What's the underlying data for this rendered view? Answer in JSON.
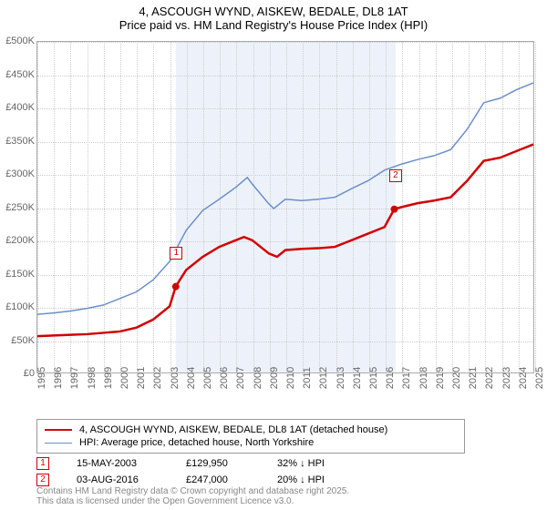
{
  "title_line1": "4, ASCOUGH WYND, AISKEW, BEDALE, DL8 1AT",
  "title_line2": "Price paid vs. HM Land Registry's House Price Index (HPI)",
  "colors": {
    "series_property": "#d10000",
    "series_hpi": "#6b8fc9",
    "grid": "#cccccc",
    "shade": "#edf2fa",
    "text": "#000000",
    "axis_text": "#666666",
    "marker_border": "#d10000"
  },
  "y_axis": {
    "min": 0,
    "max": 500000,
    "step": 50000,
    "ticks": [
      "£0",
      "£50K",
      "£100K",
      "£150K",
      "£200K",
      "£250K",
      "£300K",
      "£350K",
      "£400K",
      "£450K",
      "£500K"
    ]
  },
  "x_axis": {
    "min": 1995,
    "max": 2025,
    "step": 1,
    "ticks": [
      "1995",
      "1996",
      "1997",
      "1998",
      "1999",
      "2000",
      "2001",
      "2002",
      "2003",
      "2004",
      "2005",
      "2006",
      "2007",
      "2008",
      "2009",
      "2010",
      "2011",
      "2012",
      "2013",
      "2014",
      "2015",
      "2016",
      "2017",
      "2018",
      "2019",
      "2020",
      "2021",
      "2022",
      "2023",
      "2024",
      "2025"
    ]
  },
  "shade_range": {
    "start": 2003.37,
    "end": 2016.59
  },
  "series": {
    "property": {
      "label": "4, ASCOUGH WYND, AISKEW, BEDALE, DL8 1AT (detached house)",
      "line_width": 2.5,
      "points": [
        [
          1995,
          55000
        ],
        [
          1996,
          56000
        ],
        [
          1997,
          57000
        ],
        [
          1998,
          58000
        ],
        [
          1999,
          60000
        ],
        [
          2000,
          62000
        ],
        [
          2001,
          68000
        ],
        [
          2002,
          80000
        ],
        [
          2003,
          100000
        ],
        [
          2003.37,
          129950
        ],
        [
          2004,
          155000
        ],
        [
          2005,
          175000
        ],
        [
          2006,
          190000
        ],
        [
          2007,
          200000
        ],
        [
          2007.5,
          205000
        ],
        [
          2008,
          200000
        ],
        [
          2009,
          180000
        ],
        [
          2009.5,
          175000
        ],
        [
          2010,
          185000
        ],
        [
          2011,
          187000
        ],
        [
          2012,
          188000
        ],
        [
          2013,
          190000
        ],
        [
          2014,
          200000
        ],
        [
          2015,
          210000
        ],
        [
          2016,
          220000
        ],
        [
          2016.59,
          247000
        ],
        [
          2017,
          250000
        ],
        [
          2018,
          256000
        ],
        [
          2019,
          260000
        ],
        [
          2020,
          265000
        ],
        [
          2021,
          290000
        ],
        [
          2022,
          320000
        ],
        [
          2023,
          325000
        ],
        [
          2024,
          335000
        ],
        [
          2025,
          345000
        ]
      ]
    },
    "hpi": {
      "label": "HPI: Average price, detached house, North Yorkshire",
      "line_width": 1.5,
      "points": [
        [
          1995,
          88000
        ],
        [
          1996,
          90000
        ],
        [
          1997,
          93000
        ],
        [
          1998,
          97000
        ],
        [
          1999,
          102000
        ],
        [
          2000,
          112000
        ],
        [
          2001,
          122000
        ],
        [
          2002,
          140000
        ],
        [
          2003,
          168000
        ],
        [
          2004,
          215000
        ],
        [
          2005,
          245000
        ],
        [
          2006,
          262000
        ],
        [
          2007,
          280000
        ],
        [
          2007.7,
          295000
        ],
        [
          2008,
          285000
        ],
        [
          2009,
          255000
        ],
        [
          2009.3,
          248000
        ],
        [
          2010,
          262000
        ],
        [
          2011,
          260000
        ],
        [
          2012,
          262000
        ],
        [
          2013,
          265000
        ],
        [
          2014,
          278000
        ],
        [
          2015,
          290000
        ],
        [
          2016,
          306000
        ],
        [
          2017,
          315000
        ],
        [
          2018,
          322000
        ],
        [
          2019,
          328000
        ],
        [
          2020,
          337000
        ],
        [
          2021,
          368000
        ],
        [
          2022,
          408000
        ],
        [
          2023,
          415000
        ],
        [
          2024,
          428000
        ],
        [
          2025,
          438000
        ]
      ]
    }
  },
  "markers": [
    {
      "n": "1",
      "x": 2003.37,
      "y": 129950,
      "date": "15-MAY-2003",
      "price": "£129,950",
      "delta": "32% ↓ HPI"
    },
    {
      "n": "2",
      "x": 2016.59,
      "y": 247000,
      "date": "03-AUG-2016",
      "price": "£247,000",
      "delta": "20% ↓ HPI"
    }
  ],
  "sale_marker_offset_y": -45,
  "copyright_line1": "Contains HM Land Registry data © Crown copyright and database right 2025.",
  "copyright_line2": "This data is licensed under the Open Government Licence v3.0."
}
